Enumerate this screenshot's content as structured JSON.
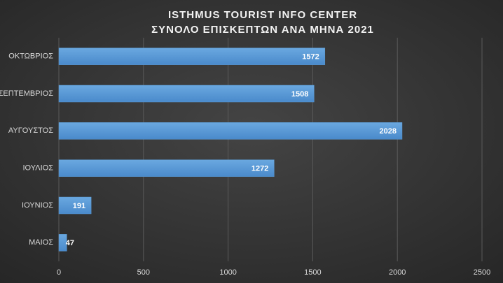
{
  "chart_data": {
    "type": "hbar",
    "title": "ISTHMUS TOURIST INFO CENTER",
    "subtitle": "ΣΥΝΟΛΟ ΕΠΙΣΚΕΠΤΩΝ ΑΝΑ ΜΗΝΑ 2021",
    "categories": [
      "ΟΚΤΩΒΡΙΟΣ",
      "ΣΕΠΤΕΜΒΡΙΟΣ",
      "ΑΥΓΟΥΣΤΟΣ",
      "ΙΟΥΛΙΟΣ",
      "ΙΟΥΝΙΟΣ",
      "ΜΑΙΟΣ"
    ],
    "values": [
      1572,
      1508,
      2028,
      1272,
      191,
      47
    ],
    "color": "#5b9bd5",
    "xlim": [
      0,
      2500
    ],
    "xticks": [
      0,
      500,
      1000,
      1500,
      2000,
      2500
    ],
    "grid": true
  }
}
